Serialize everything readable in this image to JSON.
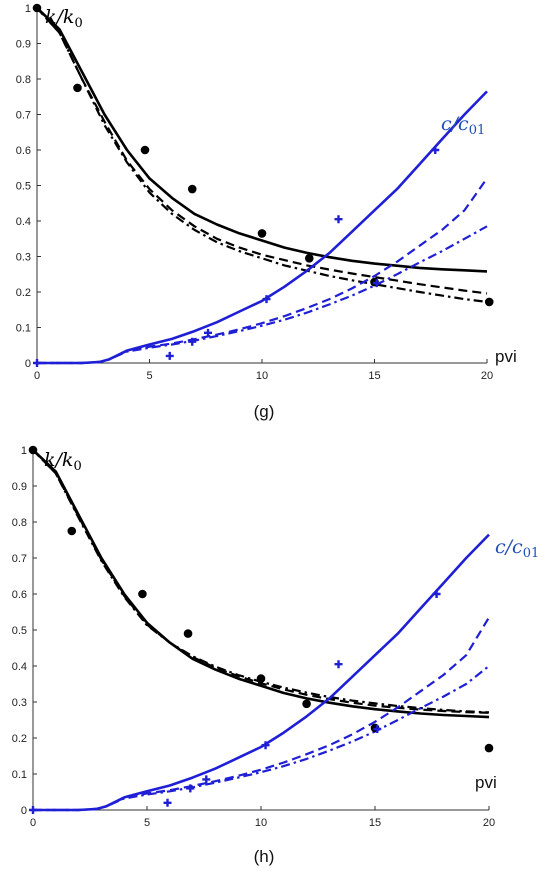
{
  "colors": {
    "k": "#000000",
    "c": "#1f1fd6",
    "c_label": "#1f4fb5"
  },
  "chart_data": [
    {
      "type": "line",
      "caption": "(g)",
      "xlabel": "pvi",
      "labels": {
        "k": "k/k",
        "k_sub": "0",
        "c": "c/c",
        "c_sub": "01"
      },
      "xlim": [
        0,
        20
      ],
      "ylim": [
        0,
        1
      ],
      "xticks": [
        0,
        5,
        10,
        15,
        20
      ],
      "yticks": [
        0,
        0.1,
        0.2,
        0.3,
        0.4,
        0.5,
        0.6,
        0.7,
        0.8,
        0.9,
        1
      ],
      "series": [
        {
          "group": "k",
          "style": "solid",
          "x": [
            0,
            1,
            2,
            3,
            4,
            5,
            6,
            7,
            8,
            9,
            10,
            11,
            12,
            13,
            14,
            15,
            16,
            17,
            18,
            19,
            20
          ],
          "y": [
            1.0,
            0.94,
            0.82,
            0.7,
            0.6,
            0.52,
            0.465,
            0.42,
            0.39,
            0.365,
            0.345,
            0.325,
            0.31,
            0.298,
            0.288,
            0.28,
            0.274,
            0.268,
            0.264,
            0.261,
            0.258
          ]
        },
        {
          "group": "k",
          "style": "dash",
          "x": [
            0,
            1,
            2,
            3,
            4,
            5,
            6,
            7,
            8,
            9,
            10,
            11,
            12,
            13,
            14,
            15,
            16,
            17,
            18,
            19,
            20
          ],
          "y": [
            1.0,
            0.93,
            0.8,
            0.68,
            0.57,
            0.49,
            0.43,
            0.385,
            0.35,
            0.325,
            0.305,
            0.29,
            0.275,
            0.263,
            0.252,
            0.242,
            0.232,
            0.222,
            0.213,
            0.204,
            0.196
          ]
        },
        {
          "group": "k",
          "style": "dashdot",
          "x": [
            0,
            1,
            2,
            3,
            4,
            5,
            6,
            7,
            8,
            9,
            10,
            11,
            12,
            13,
            14,
            15,
            16,
            17,
            18,
            19,
            20
          ],
          "y": [
            1.0,
            0.93,
            0.8,
            0.67,
            0.565,
            0.48,
            0.42,
            0.375,
            0.34,
            0.315,
            0.295,
            0.275,
            0.26,
            0.245,
            0.233,
            0.222,
            0.211,
            0.2,
            0.19,
            0.18,
            0.172
          ]
        },
        {
          "group": "c",
          "style": "solid",
          "x": [
            0,
            2,
            2.8,
            3.2,
            4,
            5,
            6,
            7,
            8,
            9,
            10,
            11,
            12,
            13,
            14,
            15,
            16,
            17,
            18,
            19,
            20
          ],
          "y": [
            0,
            0,
            0.003,
            0.01,
            0.035,
            0.052,
            0.068,
            0.09,
            0.115,
            0.145,
            0.175,
            0.215,
            0.26,
            0.31,
            0.37,
            0.43,
            0.49,
            0.56,
            0.63,
            0.7,
            0.765
          ]
        },
        {
          "group": "c",
          "style": "dash",
          "x": [
            0,
            2,
            2.8,
            3.2,
            4,
            5,
            6,
            7,
            8,
            9,
            10,
            11,
            12,
            13,
            14,
            15,
            16,
            17,
            18,
            19,
            20
          ],
          "y": [
            0,
            0,
            0.003,
            0.01,
            0.034,
            0.046,
            0.055,
            0.067,
            0.08,
            0.095,
            0.112,
            0.132,
            0.155,
            0.18,
            0.21,
            0.245,
            0.285,
            0.33,
            0.375,
            0.43,
            0.52
          ]
        },
        {
          "group": "c",
          "style": "dashdot",
          "x": [
            0,
            2,
            2.8,
            3.2,
            4,
            5,
            6,
            7,
            8,
            9,
            10,
            11,
            12,
            13,
            14,
            15,
            16,
            17,
            18,
            19,
            20
          ],
          "y": [
            0,
            0,
            0.003,
            0.01,
            0.032,
            0.043,
            0.052,
            0.063,
            0.076,
            0.09,
            0.105,
            0.122,
            0.142,
            0.165,
            0.19,
            0.218,
            0.25,
            0.283,
            0.315,
            0.35,
            0.385
          ]
        }
      ],
      "k_points": {
        "x": [
          0,
          1.8,
          4.8,
          6.9,
          10,
          12.1,
          15,
          20.1
        ],
        "y": [
          1.0,
          0.775,
          0.6,
          0.49,
          0.365,
          0.295,
          0.228,
          0.172
        ]
      },
      "c_points": {
        "x": [
          0,
          5.9,
          6.9,
          7.6,
          10.2,
          13.4,
          15.1,
          17.7
        ],
        "y": [
          0,
          0.02,
          0.06,
          0.085,
          0.18,
          0.405,
          0.225,
          0.6
        ]
      }
    },
    {
      "type": "line",
      "caption": "(h)",
      "xlabel": "pvi",
      "labels": {
        "k": "k/k",
        "k_sub": "0",
        "c": "c/c",
        "c_sub": "01"
      },
      "xlim": [
        0,
        20
      ],
      "ylim": [
        0,
        1
      ],
      "xticks": [
        0,
        5,
        10,
        15,
        20
      ],
      "yticks": [
        0,
        0.1,
        0.2,
        0.3,
        0.4,
        0.5,
        0.6,
        0.7,
        0.8,
        0.9,
        1
      ],
      "series": [
        {
          "group": "k",
          "style": "solid",
          "x": [
            0,
            1,
            2,
            3,
            4,
            5,
            6,
            7,
            8,
            9,
            10,
            11,
            12,
            13,
            14,
            15,
            16,
            17,
            18,
            19,
            20
          ],
          "y": [
            1.0,
            0.94,
            0.82,
            0.7,
            0.6,
            0.52,
            0.465,
            0.42,
            0.39,
            0.365,
            0.345,
            0.325,
            0.31,
            0.298,
            0.288,
            0.28,
            0.274,
            0.268,
            0.264,
            0.261,
            0.258
          ]
        },
        {
          "group": "k",
          "style": "dash",
          "x": [
            0,
            1,
            2,
            3,
            4,
            5,
            6,
            7,
            8,
            9,
            10,
            11,
            12,
            13,
            14,
            15,
            16,
            17,
            18,
            19,
            20
          ],
          "y": [
            1.0,
            0.935,
            0.815,
            0.695,
            0.595,
            0.515,
            0.465,
            0.425,
            0.395,
            0.372,
            0.352,
            0.335,
            0.32,
            0.308,
            0.298,
            0.29,
            0.284,
            0.279,
            0.275,
            0.272,
            0.27
          ]
        },
        {
          "group": "k",
          "style": "dashdot",
          "x": [
            0,
            1,
            2,
            3,
            4,
            5,
            6,
            7,
            8,
            9,
            10,
            11,
            12,
            13,
            14,
            15,
            16,
            17,
            18,
            19,
            20
          ],
          "y": [
            1.0,
            0.935,
            0.812,
            0.692,
            0.592,
            0.513,
            0.465,
            0.427,
            0.398,
            0.375,
            0.356,
            0.34,
            0.326,
            0.314,
            0.304,
            0.296,
            0.289,
            0.283,
            0.278,
            0.274,
            0.271
          ]
        },
        {
          "group": "c",
          "style": "solid",
          "x": [
            0,
            2,
            2.8,
            3.2,
            4,
            5,
            6,
            7,
            8,
            9,
            10,
            11,
            12,
            13,
            14,
            15,
            16,
            17,
            18,
            19,
            20
          ],
          "y": [
            0,
            0,
            0.003,
            0.01,
            0.035,
            0.052,
            0.068,
            0.09,
            0.115,
            0.145,
            0.175,
            0.215,
            0.26,
            0.31,
            0.37,
            0.43,
            0.49,
            0.56,
            0.63,
            0.7,
            0.765
          ]
        },
        {
          "group": "c",
          "style": "dash",
          "x": [
            0,
            2,
            2.8,
            3.2,
            4,
            5,
            6,
            7,
            8,
            9,
            10,
            11,
            12,
            13,
            14,
            15,
            16,
            17,
            18,
            19,
            20
          ],
          "y": [
            0,
            0,
            0.003,
            0.01,
            0.034,
            0.046,
            0.055,
            0.067,
            0.08,
            0.095,
            0.112,
            0.132,
            0.155,
            0.18,
            0.21,
            0.245,
            0.285,
            0.33,
            0.375,
            0.43,
            0.535
          ]
        },
        {
          "group": "c",
          "style": "dashdot",
          "x": [
            0,
            2,
            2.8,
            3.2,
            4,
            5,
            6,
            7,
            8,
            9,
            10,
            11,
            12,
            13,
            14,
            15,
            16,
            17,
            18,
            19,
            20
          ],
          "y": [
            0,
            0,
            0.003,
            0.01,
            0.032,
            0.043,
            0.052,
            0.063,
            0.076,
            0.09,
            0.105,
            0.122,
            0.142,
            0.165,
            0.19,
            0.218,
            0.25,
            0.283,
            0.315,
            0.35,
            0.4
          ]
        }
      ],
      "k_points": {
        "x": [
          0,
          1.7,
          4.8,
          6.8,
          10,
          12,
          15,
          20
        ],
        "y": [
          1.0,
          0.775,
          0.6,
          0.49,
          0.365,
          0.295,
          0.228,
          0.172
        ]
      },
      "c_points": {
        "x": [
          0,
          5.9,
          6.9,
          7.6,
          10.2,
          13.4,
          15.1,
          17.7
        ],
        "y": [
          0,
          0.02,
          0.06,
          0.085,
          0.18,
          0.405,
          0.225,
          0.6
        ]
      }
    }
  ]
}
